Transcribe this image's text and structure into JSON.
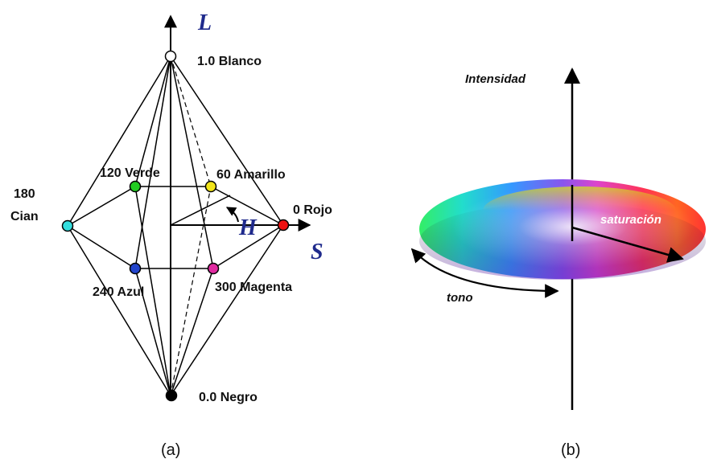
{
  "panel_a": {
    "axis_letters": {
      "vertical": "L",
      "saturation": "S",
      "hue": "H"
    },
    "labels": {
      "white": "1.0 Blanco",
      "black": "0.0 Negro",
      "green": "120 Verde",
      "yellow": "60 Amarillo",
      "red": "0 Rojo",
      "cyan_deg": "180",
      "cyan_name": "Cian",
      "blue": "240 Azul",
      "magenta": "300 Magenta"
    },
    "colors": {
      "white": "#ffffff",
      "black": "#000000",
      "green": "#22cc22",
      "yellow": "#f2e51a",
      "red": "#ee1111",
      "cyan": "#33dddd",
      "blue": "#2244cc",
      "magenta": "#e02aa0"
    },
    "caption": "(a)"
  },
  "panel_b": {
    "labels": {
      "intensity": "Intensidad",
      "saturation": "saturación",
      "hue": "tono"
    },
    "caption": "(b)"
  }
}
